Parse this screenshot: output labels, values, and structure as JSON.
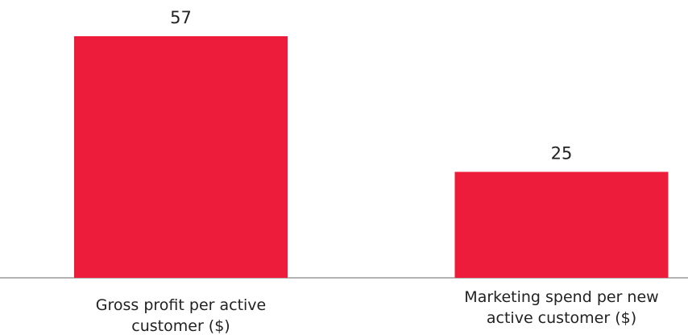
{
  "chart_data": {
    "type": "bar",
    "categories": [
      "Gross profit per active customer ($)",
      "Marketing spend per new active customer ($)"
    ],
    "values": [
      57,
      25
    ],
    "color": "#ed1c3a"
  }
}
